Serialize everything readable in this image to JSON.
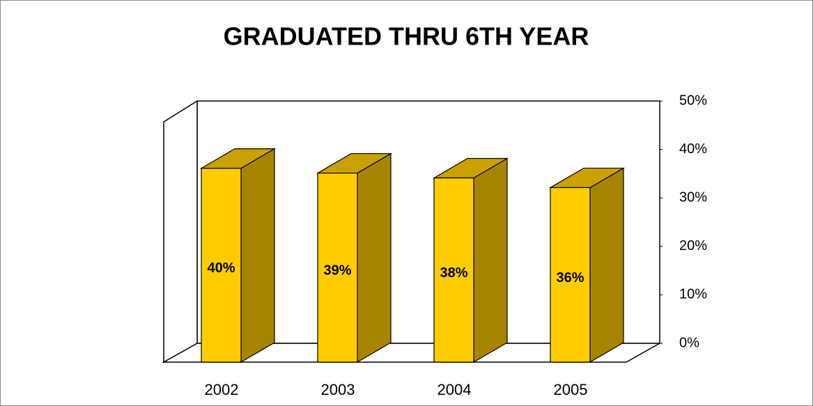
{
  "chart_data": {
    "type": "bar3d",
    "title": "GRADUATED THRU 6TH YEAR",
    "categories": [
      "2002",
      "2003",
      "2004",
      "2005"
    ],
    "values": [
      40,
      39,
      38,
      36
    ],
    "value_labels": [
      "40%",
      "39%",
      "38%",
      "36%"
    ],
    "color": "#ffcc00",
    "ylim": [
      0,
      50
    ],
    "yticks": [
      {
        "value": 0,
        "label": "0%"
      },
      {
        "value": 10,
        "label": "10%"
      },
      {
        "value": 20,
        "label": "20%"
      },
      {
        "value": 30,
        "label": "30%"
      },
      {
        "value": 40,
        "label": "40%"
      },
      {
        "value": 50,
        "label": "50%"
      }
    ],
    "grid": false
  }
}
